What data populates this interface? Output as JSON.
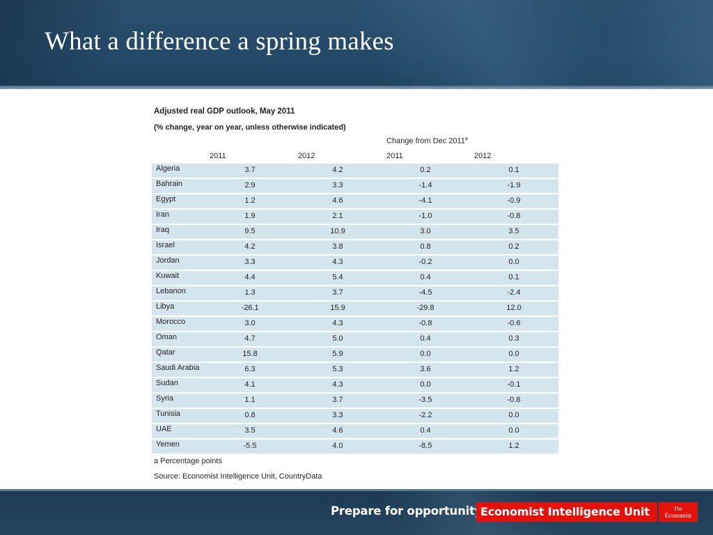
{
  "slide": {
    "title": "What a difference a spring makes"
  },
  "chart_data": {
    "type": "table",
    "title": "Adjusted real GDP outlook, May 2011",
    "subtitle": "(% change, year on year, unless otherwise indicated)",
    "group_header": "Change from Dec 2011",
    "group_header_note": "a",
    "columns": [
      "2011",
      "2012",
      "2011",
      "2012"
    ],
    "rows": [
      {
        "country": "Algeria",
        "values": [
          "3.7",
          "4.2",
          "0.2",
          "0.1"
        ]
      },
      {
        "country": "Bahrain",
        "values": [
          "2.9",
          "3.3",
          "-1.4",
          "-1.9"
        ]
      },
      {
        "country": "Egypt",
        "values": [
          "1.2",
          "4.6",
          "-4.1",
          "-0.9"
        ]
      },
      {
        "country": "Iran",
        "values": [
          "1.9",
          "2.1",
          "-1.0",
          "-0.8"
        ]
      },
      {
        "country": "Iraq",
        "values": [
          "9.5",
          "10.9",
          "3.0",
          "3.5"
        ]
      },
      {
        "country": "Israel",
        "values": [
          "4.2",
          "3.8",
          "0.8",
          "0.2"
        ]
      },
      {
        "country": "Jordan",
        "values": [
          "3.3",
          "4.3",
          "-0.2",
          "0.0"
        ]
      },
      {
        "country": "Kuwait",
        "values": [
          "4.4",
          "5.4",
          "0.4",
          "0.1"
        ]
      },
      {
        "country": "Lebanon",
        "values": [
          "1.3",
          "3.7",
          "-4.5",
          "-2.4"
        ]
      },
      {
        "country": "Libya",
        "values": [
          "-26.1",
          "15.9",
          "-29.8",
          "12.0"
        ]
      },
      {
        "country": "Morocco",
        "values": [
          "3.0",
          "4.3",
          "-0.8",
          "-0.6"
        ]
      },
      {
        "country": "Oman",
        "values": [
          "4.7",
          "5.0",
          "0.4",
          "0.3"
        ]
      },
      {
        "country": "Qatar",
        "values": [
          "15.8",
          "5.9",
          "0.0",
          "0.0"
        ]
      },
      {
        "country": "Saudi Arabia",
        "values": [
          "6.3",
          "5.3",
          "3.6",
          "1.2"
        ]
      },
      {
        "country": "Sudan",
        "values": [
          "4.1",
          "4.3",
          "0.0",
          "-0.1"
        ]
      },
      {
        "country": "Syria",
        "values": [
          "1.1",
          "3.7",
          "-3.5",
          "-0.8"
        ]
      },
      {
        "country": "Tunisia",
        "values": [
          "0.8",
          "3.3",
          "-2.2",
          "0.0"
        ]
      },
      {
        "country": "UAE",
        "values": [
          "3.5",
          "4.6",
          "0.4",
          "0.0"
        ]
      },
      {
        "country": "Yemen",
        "values": [
          "-5.5",
          "4.0",
          "-8.5",
          "1.2"
        ]
      }
    ],
    "footnote": "a Percentage points",
    "source": "Source: Economist Intelligence Unit, CountryData",
    "row_color": "#d5e5ee"
  },
  "footer": {
    "tagline": "Prepare for opportunity.",
    "eiu_logo_text": "Economist Intelligence Unit",
    "economist_logo_line1": "The",
    "economist_logo_line2": "Economist",
    "brand_red": "#e3120b"
  },
  "colors": {
    "header_blue": "#244a69",
    "footer_blue": "#1f3e58"
  }
}
